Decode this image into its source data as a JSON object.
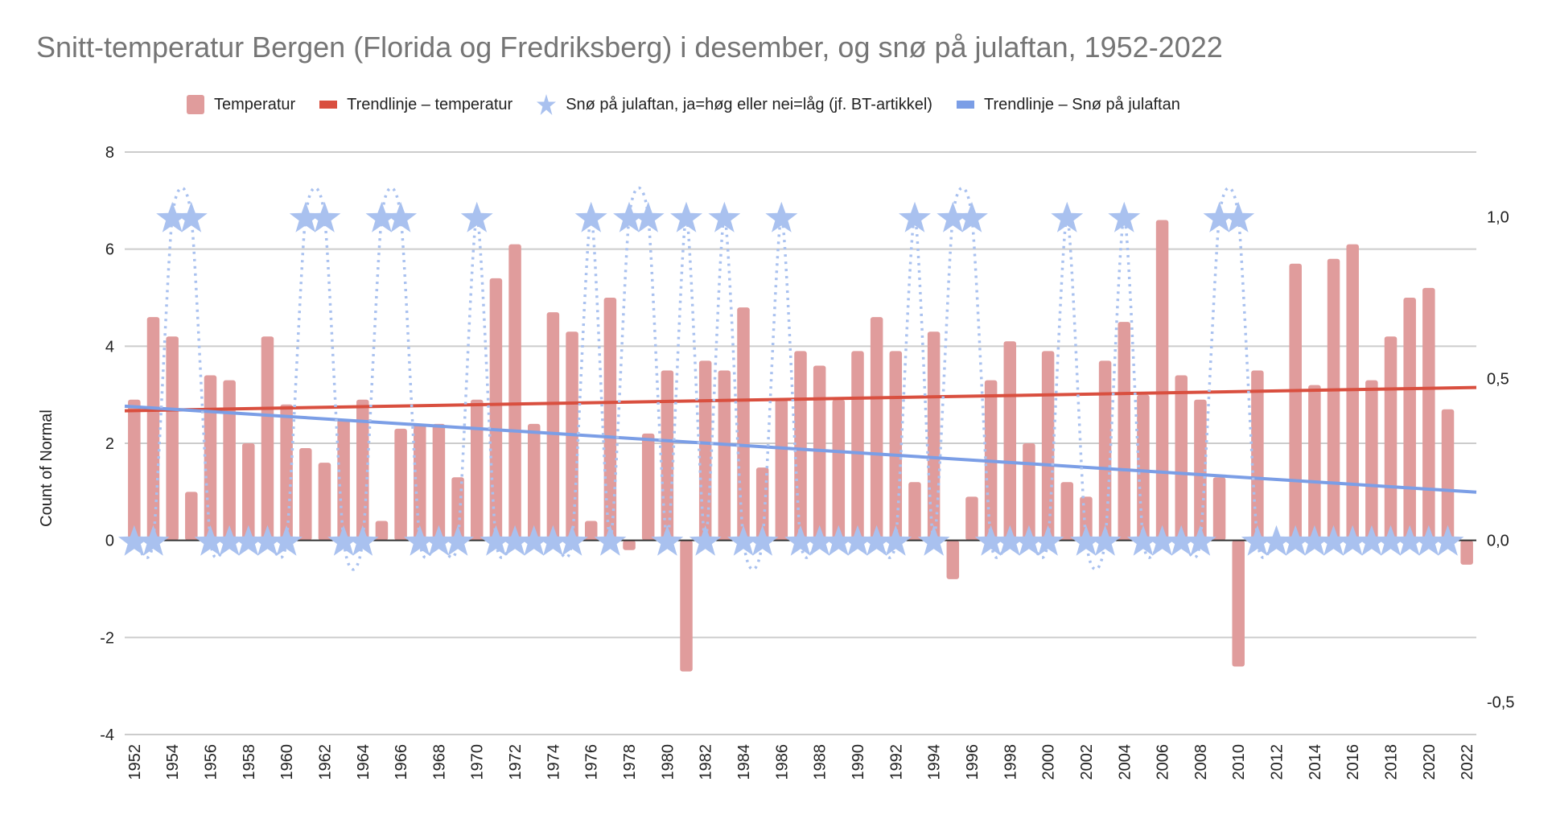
{
  "chart_data": {
    "type": "bar",
    "title": "Snitt-temperatur Bergen (Florida og Fredriksberg) i desember, og snø på julaftan, 1952-2022",
    "ylabel": "Count of Normal",
    "xlabel": "",
    "ylim": [
      -4,
      8
    ],
    "y2lim": [
      -0.6,
      1.2
    ],
    "yticks": [
      "-4",
      "-2",
      "0",
      "2",
      "4",
      "6",
      "8"
    ],
    "ytick_values": [
      -4,
      -2,
      0,
      2,
      4,
      6,
      8
    ],
    "y2ticks": [
      "-0,5",
      "0,0",
      "0,5",
      "1,0"
    ],
    "y2tick_values": [
      -0.5,
      0,
      0.5,
      1.0
    ],
    "grid": true,
    "legend_position": "top",
    "legend": [
      {
        "label": "Temperatur",
        "kind": "bar",
        "color": "#e09c9c"
      },
      {
        "label": "Trendlinje – temperatur",
        "kind": "line",
        "color": "#d94f3f"
      },
      {
        "label": "Snø på julaftan, ja=høg eller nei=låg (jf. BT-artikkel)",
        "kind": "star",
        "color": "#a9c1ef"
      },
      {
        "label": "Trendlinje – Snø på julaftan",
        "kind": "line",
        "color": "#7b9ee6"
      }
    ],
    "x": [
      1952,
      1953,
      1954,
      1955,
      1956,
      1957,
      1958,
      1959,
      1960,
      1961,
      1962,
      1963,
      1964,
      1965,
      1966,
      1967,
      1968,
      1969,
      1970,
      1971,
      1972,
      1973,
      1974,
      1975,
      1976,
      1977,
      1978,
      1979,
      1980,
      1981,
      1982,
      1983,
      1984,
      1985,
      1986,
      1987,
      1988,
      1989,
      1990,
      1991,
      1992,
      1993,
      1994,
      1995,
      1996,
      1997,
      1998,
      1999,
      2000,
      2001,
      2002,
      2003,
      2004,
      2005,
      2006,
      2007,
      2008,
      2009,
      2010,
      2011,
      2012,
      2013,
      2014,
      2015,
      2016,
      2017,
      2018,
      2019,
      2020,
      2021,
      2022
    ],
    "xtick_labels": [
      "1952",
      "1954",
      "1956",
      "1958",
      "1960",
      "1962",
      "1964",
      "1966",
      "1968",
      "1970",
      "1972",
      "1974",
      "1976",
      "1978",
      "1980",
      "1982",
      "1984",
      "1986",
      "1988",
      "1990",
      "1992",
      "1994",
      "1996",
      "1998",
      "2000",
      "2002",
      "2004",
      "2006",
      "2008",
      "2010",
      "2012",
      "2014",
      "2016",
      "2018",
      "2020",
      "2022"
    ],
    "series": [
      {
        "name": "Temperatur",
        "type": "bar",
        "axis": "left",
        "color": "#e09c9c",
        "values": [
          2.9,
          4.6,
          4.2,
          1.0,
          3.4,
          3.3,
          2.0,
          4.2,
          2.8,
          1.9,
          1.6,
          2.5,
          2.9,
          0.4,
          2.3,
          2.4,
          2.4,
          1.3,
          2.9,
          5.4,
          6.1,
          2.4,
          4.7,
          4.3,
          0.4,
          5.0,
          -0.2,
          2.2,
          3.5,
          -2.7,
          3.7,
          3.5,
          4.8,
          1.5,
          2.9,
          3.9,
          3.6,
          2.9,
          3.9,
          4.6,
          3.9,
          1.2,
          4.3,
          -0.8,
          0.9,
          3.3,
          4.1,
          2.0,
          3.9,
          1.2,
          0.9,
          3.7,
          4.5,
          3.0,
          6.6,
          3.4,
          2.9,
          1.3,
          -2.6,
          3.5,
          0,
          5.7,
          3.2,
          5.8,
          6.1,
          3.3,
          4.2,
          5.0,
          5.2,
          2.7,
          -0.5
        ]
      },
      {
        "name": "Trendlinje – temperatur",
        "type": "line",
        "axis": "left",
        "color": "#d94f3f",
        "start": 2.67,
        "end": 3.15
      },
      {
        "name": "Snø på julaftan, ja=høg eller nei=låg (jf. BT-artikkel)",
        "type": "scatter-star",
        "axis": "right",
        "color": "#a9c1ef",
        "values": [
          0,
          0,
          1,
          1,
          0,
          0,
          0,
          0,
          0,
          1,
          1,
          0,
          0,
          1,
          1,
          0,
          0,
          0,
          1,
          0,
          0,
          0,
          0,
          0,
          1,
          0,
          1,
          1,
          0,
          1,
          0,
          1,
          0,
          0,
          1,
          0,
          0,
          0,
          0,
          0,
          0,
          1,
          0,
          1,
          1,
          0,
          0,
          0,
          0,
          1,
          0,
          0,
          1,
          0,
          0,
          0,
          0,
          1,
          1,
          0,
          0,
          0,
          0,
          0,
          0,
          0,
          0,
          0,
          0,
          0,
          null
        ]
      },
      {
        "name": "Trendlinje – Snø på julaftan",
        "type": "line",
        "axis": "right",
        "color": "#7b9ee6",
        "start": 0.415,
        "end": 0.149
      }
    ]
  }
}
